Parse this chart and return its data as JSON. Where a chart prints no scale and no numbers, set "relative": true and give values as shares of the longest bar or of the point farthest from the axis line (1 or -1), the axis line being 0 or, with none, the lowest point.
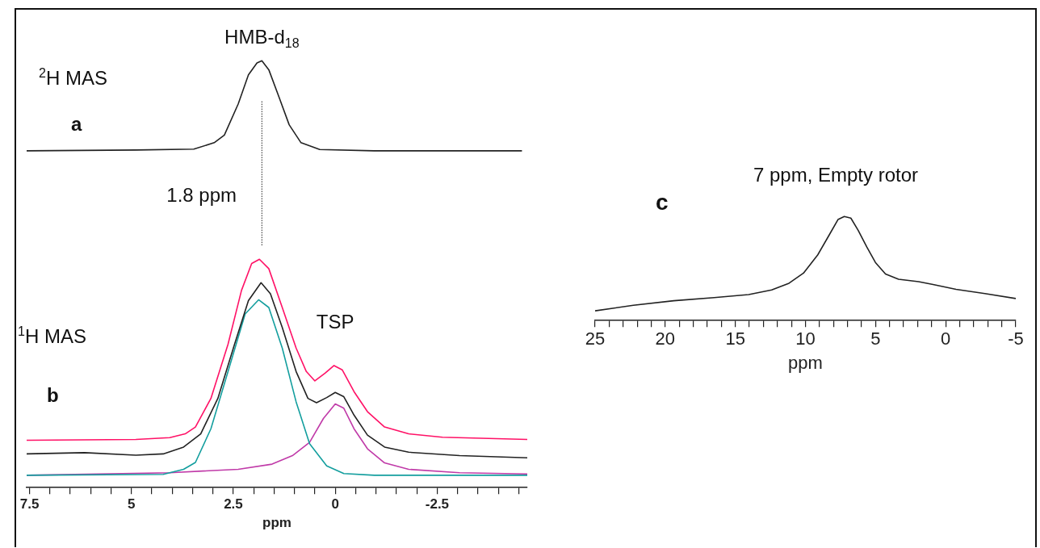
{
  "chart_data": [
    {
      "type": "line",
      "relative": true,
      "grid": false,
      "legend": false,
      "marker": "none",
      "xlim": [
        7.57,
        -4.71
      ],
      "xlabel": "ppm",
      "xticks": [
        {
          "value": 7.5,
          "label": "7.5"
        },
        {
          "value": 7,
          "label": null
        },
        {
          "value": 6.5,
          "label": null
        },
        {
          "value": 6,
          "label": null
        },
        {
          "value": 5.5,
          "label": null
        },
        5,
        {
          "value": 4.5,
          "label": null
        },
        {
          "value": 4,
          "label": null
        },
        {
          "value": 3.5,
          "label": null
        },
        {
          "value": 3,
          "label": null
        },
        {
          "value": 2.5,
          "label": "2.5"
        },
        {
          "value": 2,
          "label": null
        },
        {
          "value": 1.5,
          "label": null
        },
        {
          "value": 1,
          "label": null
        },
        {
          "value": 0.5,
          "label": null
        },
        0,
        {
          "value": -0.5,
          "label": null
        },
        {
          "value": -1,
          "label": null
        },
        {
          "value": -1.5,
          "label": null
        },
        {
          "value": -2,
          "label": null
        },
        {
          "value": -2.5,
          "label": "-2.5"
        },
        {
          "value": -3,
          "label": null
        },
        {
          "value": -3.5,
          "label": null
        },
        {
          "value": -4,
          "label": null
        },
        {
          "value": -4.5,
          "label": null
        }
      ],
      "series": [
        {
          "color": "#222222",
          "x": [
            7.57,
            4.89,
            3.47,
            2.97,
            2.72,
            2.38,
            2.13,
            1.92,
            1.8,
            1.63,
            1.38,
            1.13,
            0.84,
            0.38,
            -0.95,
            -4.58
          ],
          "values": [
            0.789,
            0.791,
            0.793,
            0.808,
            0.826,
            0.899,
            0.967,
            0.995,
            1,
            0.979,
            0.915,
            0.85,
            0.808,
            0.792,
            0.789,
            0.789
          ]
        },
        {
          "color": "#ff1166",
          "x": [
            7.57,
            4.89,
            4.06,
            3.68,
            3.43,
            3.05,
            2.63,
            2.3,
            2.05,
            1.86,
            1.63,
            1.3,
            0.96,
            0.71,
            0.5,
            0.25,
            0.03,
            -0.17,
            -0.46,
            -0.79,
            -1.21,
            -1.8,
            -2.63,
            -4.71
          ],
          "values": [
            0.111,
            0.113,
            0.117,
            0.126,
            0.142,
            0.209,
            0.336,
            0.462,
            0.525,
            0.535,
            0.513,
            0.422,
            0.327,
            0.272,
            0.25,
            0.268,
            0.286,
            0.276,
            0.225,
            0.178,
            0.142,
            0.126,
            0.118,
            0.113
          ]
        },
        {
          "color": "#222222",
          "x": [
            7.57,
            6.15,
            4.89,
            4.22,
            3.72,
            3.3,
            2.88,
            2.47,
            2.13,
            1.82,
            1.59,
            1.3,
            0.96,
            0.67,
            0.46,
            0.21,
            0,
            -0.21,
            -0.46,
            -0.79,
            -1.21,
            -1.8,
            -3.05,
            -4.71
          ],
          "values": [
            0.079,
            0.082,
            0.076,
            0.079,
            0.095,
            0.126,
            0.209,
            0.336,
            0.438,
            0.48,
            0.454,
            0.375,
            0.272,
            0.209,
            0.199,
            0.211,
            0.223,
            0.213,
            0.17,
            0.123,
            0.095,
            0.083,
            0.075,
            0.07
          ]
        },
        {
          "color": "#139e9e",
          "x": [
            7.57,
            4.22,
            3.72,
            3.43,
            3.05,
            2.63,
            2.21,
            1.88,
            1.63,
            1.3,
            0.96,
            0.63,
            0.21,
            -0.21,
            -0.96,
            -4.71
          ],
          "values": [
            0.029,
            0.031,
            0.043,
            0.059,
            0.138,
            0.272,
            0.407,
            0.44,
            0.422,
            0.327,
            0.201,
            0.103,
            0.051,
            0.033,
            0.029,
            0.029
          ]
        },
        {
          "color": "#c03aa8",
          "x": [
            7.57,
            4.06,
            2.38,
            1.55,
            1.05,
            0.63,
            0.29,
            0,
            -0.21,
            -0.46,
            -0.79,
            -1.21,
            -1.8,
            -3.05,
            -4.71
          ],
          "values": [
            0.029,
            0.035,
            0.043,
            0.055,
            0.075,
            0.106,
            0.162,
            0.196,
            0.186,
            0.138,
            0.091,
            0.058,
            0.043,
            0.035,
            0.032
          ]
        }
      ],
      "ref_lines": [
        {
          "axis": "x",
          "value": 1.8,
          "label": "1.8 ppm",
          "line_style": "dotted",
          "color": "#222222"
        }
      ],
      "annotations": [
        {
          "text": "HMB-d$_{18}$",
          "x": 1.8,
          "y": 1
        },
        "$^{2}$H MAS",
        "a",
        {
          "text": "TSP",
          "x": 0,
          "y": 0.286
        },
        "$^{1}$H MAS",
        "b"
      ]
    },
    {
      "type": "line",
      "relative": true,
      "grid": false,
      "legend": false,
      "marker": "none",
      "xlim": [
        25,
        -5
      ],
      "xlabel": "ppm",
      "title": "7 ppm, Empty rotor",
      "xticks": [
        25,
        {
          "value": 24,
          "label": null
        },
        {
          "value": 23,
          "label": null
        },
        {
          "value": 22,
          "label": null
        },
        {
          "value": 21,
          "label": null
        },
        20,
        {
          "value": 19,
          "label": null
        },
        {
          "value": 18,
          "label": null
        },
        {
          "value": 17,
          "label": null
        },
        {
          "value": 16,
          "label": null
        },
        15,
        {
          "value": 14,
          "label": null
        },
        {
          "value": 13,
          "label": null
        },
        {
          "value": 12,
          "label": null
        },
        {
          "value": 11,
          "label": null
        },
        10,
        {
          "value": 9,
          "label": null
        },
        {
          "value": 8,
          "label": null
        },
        {
          "value": 7,
          "label": null
        },
        {
          "value": 6,
          "label": null
        },
        5,
        {
          "value": 4,
          "label": null
        },
        {
          "value": 3,
          "label": null
        },
        {
          "value": 2,
          "label": null
        },
        {
          "value": 1,
          "label": null
        },
        0,
        {
          "value": -1,
          "label": null
        },
        {
          "value": -2,
          "label": null
        },
        {
          "value": -3,
          "label": null
        },
        {
          "value": -4,
          "label": null
        },
        -5
      ],
      "x": [
        25,
        22.27,
        19.39,
        16.51,
        14.05,
        12.41,
        11.17,
        10.14,
        9.12,
        8.3,
        7.68,
        7.23,
        6.76,
        6.24,
        5.62,
        5.01,
        4.29,
        3.36,
        1.93,
        0.9,
        -0.74,
        -2.8,
        -5
      ],
      "values": [
        0.094,
        0.147,
        0.191,
        0.221,
        0.25,
        0.294,
        0.359,
        0.456,
        0.632,
        0.824,
        0.971,
        1,
        0.985,
        0.868,
        0.706,
        0.559,
        0.447,
        0.397,
        0.374,
        0.347,
        0.3,
        0.259,
        0.212
      ],
      "color": "#222222",
      "annotations": [
        "c"
      ]
    }
  ]
}
